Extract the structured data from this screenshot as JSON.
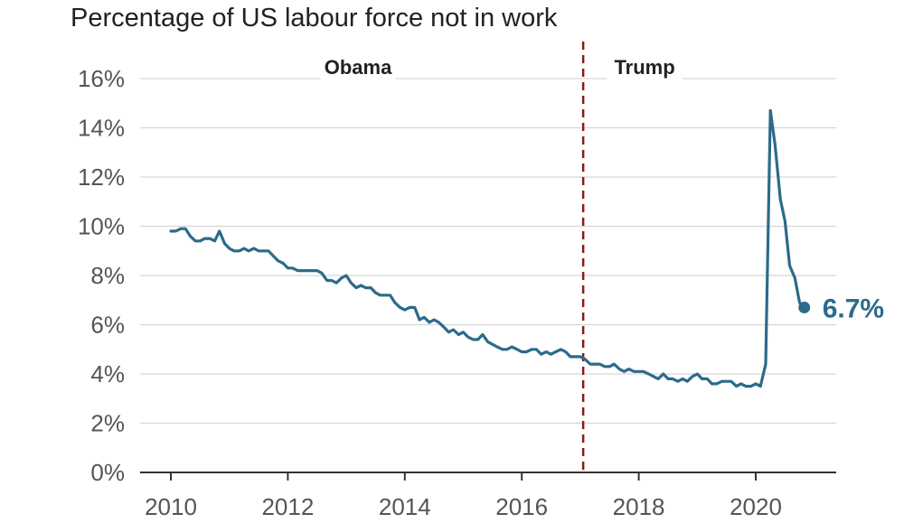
{
  "title": "Percentage of US labour force not in work",
  "chart_data": {
    "type": "line",
    "title": "Percentage of US labour force not in work",
    "xlabel": "",
    "ylabel": "",
    "xlim": [
      2010,
      2021
    ],
    "ylim": [
      0,
      16
    ],
    "y_ticks": [
      0,
      2,
      4,
      6,
      8,
      10,
      12,
      14,
      16
    ],
    "y_tick_labels": [
      "0%",
      "2%",
      "4%",
      "6%",
      "8%",
      "10%",
      "12%",
      "14%",
      "16%"
    ],
    "x_ticks": [
      2010,
      2012,
      2014,
      2016,
      2018,
      2020
    ],
    "x_tick_labels": [
      "2010",
      "2012",
      "2014",
      "2016",
      "2018",
      "2020"
    ],
    "grid": "horizontal",
    "color": "#2c6b8a",
    "divider": {
      "x": 2017.05,
      "color": "#8b1a1a",
      "style": "dashed"
    },
    "eras": [
      {
        "label": "Obama",
        "x": 2013.2
      },
      {
        "label": "Trump",
        "x": 2018.1
      }
    ],
    "end_label": "6.7%",
    "series": [
      {
        "x": [
          2010.0,
          2010.08,
          2010.17,
          2010.25,
          2010.33,
          2010.42,
          2010.5,
          2010.58,
          2010.67,
          2010.75,
          2010.83,
          2010.92,
          2011.0,
          2011.08,
          2011.17,
          2011.25,
          2011.33,
          2011.42,
          2011.5,
          2011.58,
          2011.67,
          2011.75,
          2011.83,
          2011.92,
          2012.0,
          2012.08,
          2012.17,
          2012.25,
          2012.33,
          2012.42,
          2012.5,
          2012.58,
          2012.67,
          2012.75,
          2012.83,
          2012.92,
          2013.0,
          2013.08,
          2013.17,
          2013.25,
          2013.33,
          2013.42,
          2013.5,
          2013.58,
          2013.67,
          2013.75,
          2013.83,
          2013.92,
          2014.0,
          2014.08,
          2014.17,
          2014.25,
          2014.33,
          2014.42,
          2014.5,
          2014.58,
          2014.67,
          2014.75,
          2014.83,
          2014.92,
          2015.0,
          2015.08,
          2015.17,
          2015.25,
          2015.33,
          2015.42,
          2015.5,
          2015.58,
          2015.67,
          2015.75,
          2015.83,
          2015.92,
          2016.0,
          2016.08,
          2016.17,
          2016.25,
          2016.33,
          2016.42,
          2016.5,
          2016.58,
          2016.67,
          2016.75,
          2016.83,
          2016.92,
          2017.0,
          2017.08,
          2017.17,
          2017.25,
          2017.33,
          2017.42,
          2017.5,
          2017.58,
          2017.67,
          2017.75,
          2017.83,
          2017.92,
          2018.0,
          2018.08,
          2018.17,
          2018.25,
          2018.33,
          2018.42,
          2018.5,
          2018.58,
          2018.67,
          2018.75,
          2018.83,
          2018.92,
          2019.0,
          2019.08,
          2019.17,
          2019.25,
          2019.33,
          2019.42,
          2019.5,
          2019.58,
          2019.67,
          2019.75,
          2019.83,
          2019.92,
          2020.0,
          2020.08,
          2020.17,
          2020.25,
          2020.33,
          2020.42,
          2020.5,
          2020.58,
          2020.67,
          2020.75,
          2020.83
        ],
        "y": [
          9.8,
          9.8,
          9.9,
          9.9,
          9.6,
          9.4,
          9.4,
          9.5,
          9.5,
          9.4,
          9.8,
          9.3,
          9.1,
          9.0,
          9.0,
          9.1,
          9.0,
          9.1,
          9.0,
          9.0,
          9.0,
          8.8,
          8.6,
          8.5,
          8.3,
          8.3,
          8.2,
          8.2,
          8.2,
          8.2,
          8.2,
          8.1,
          7.8,
          7.8,
          7.7,
          7.9,
          8.0,
          7.7,
          7.5,
          7.6,
          7.5,
          7.5,
          7.3,
          7.2,
          7.2,
          7.2,
          6.9,
          6.7,
          6.6,
          6.7,
          6.7,
          6.2,
          6.3,
          6.1,
          6.2,
          6.1,
          5.9,
          5.7,
          5.8,
          5.6,
          5.7,
          5.5,
          5.4,
          5.4,
          5.6,
          5.3,
          5.2,
          5.1,
          5.0,
          5.0,
          5.1,
          5.0,
          4.9,
          4.9,
          5.0,
          5.0,
          4.8,
          4.9,
          4.8,
          4.9,
          5.0,
          4.9,
          4.7,
          4.7,
          4.7,
          4.6,
          4.4,
          4.4,
          4.4,
          4.3,
          4.3,
          4.4,
          4.2,
          4.1,
          4.2,
          4.1,
          4.1,
          4.1,
          4.0,
          3.9,
          3.8,
          4.0,
          3.8,
          3.8,
          3.7,
          3.8,
          3.7,
          3.9,
          4.0,
          3.8,
          3.8,
          3.6,
          3.6,
          3.7,
          3.7,
          3.7,
          3.5,
          3.6,
          3.5,
          3.5,
          3.6,
          3.5,
          4.4,
          14.7,
          13.3,
          11.1,
          10.2,
          8.4,
          7.9,
          6.9,
          6.7
        ]
      }
    ]
  }
}
